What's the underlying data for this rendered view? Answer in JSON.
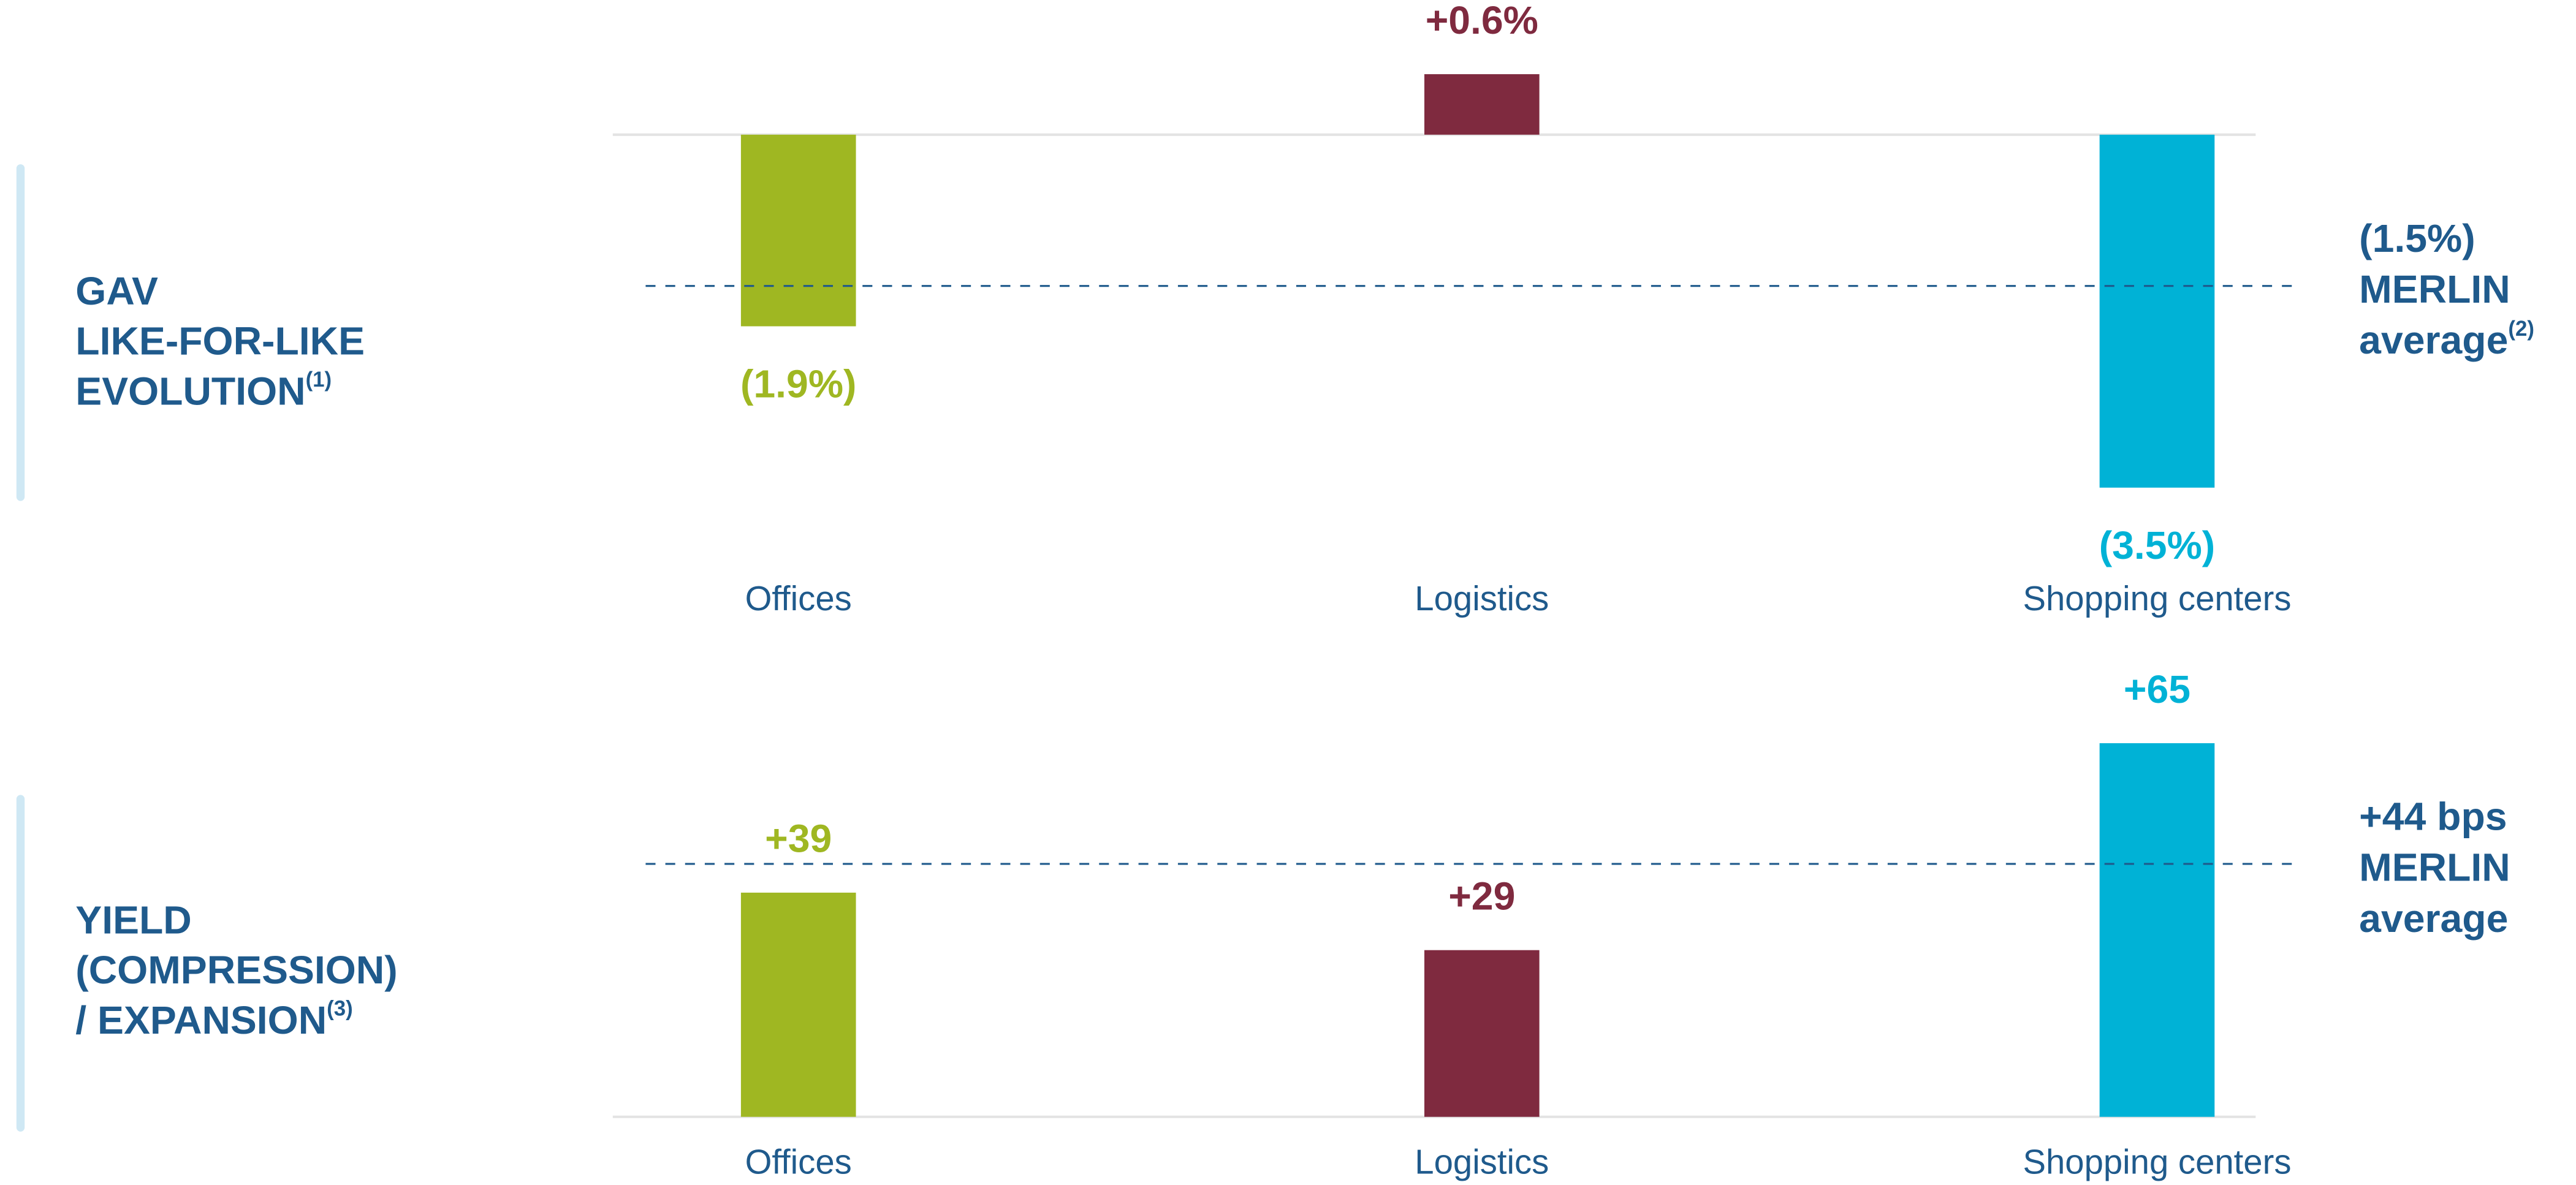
{
  "chart_data": [
    {
      "type": "bar",
      "title": [
        "GAV",
        "LIKE-FOR-LIKE",
        "EVOLUTION"
      ],
      "title_note": "(1)",
      "categories": [
        "Offices",
        "Logistics",
        "Shopping centers"
      ],
      "values": [
        -1.9,
        0.6,
        -3.5
      ],
      "value_labels": [
        "(1.9%)",
        "+0.6%",
        "(3.5%)"
      ],
      "colors": [
        "#9fb722",
        "#7f2a3f",
        "#00b2d6"
      ],
      "reference_line": {
        "value": -1.5,
        "label": "(1.5%)",
        "text": [
          "MERLIN",
          "average"
        ],
        "note": "(2)"
      }
    },
    {
      "type": "bar",
      "title": [
        "YIELD",
        "(COMPRESSION)",
        "/ EXPANSION"
      ],
      "title_note": "(3)",
      "categories": [
        "Offices",
        "Logistics",
        "Shopping centers"
      ],
      "values": [
        39,
        29,
        65
      ],
      "value_labels": [
        "+39",
        "+29",
        "+65"
      ],
      "colors": [
        "#9fb722",
        "#7f2a3f",
        "#00b2d6"
      ],
      "reference_line": {
        "value": 44,
        "label": "+44 bps",
        "text": [
          "MERLIN",
          "average"
        ]
      }
    }
  ]
}
